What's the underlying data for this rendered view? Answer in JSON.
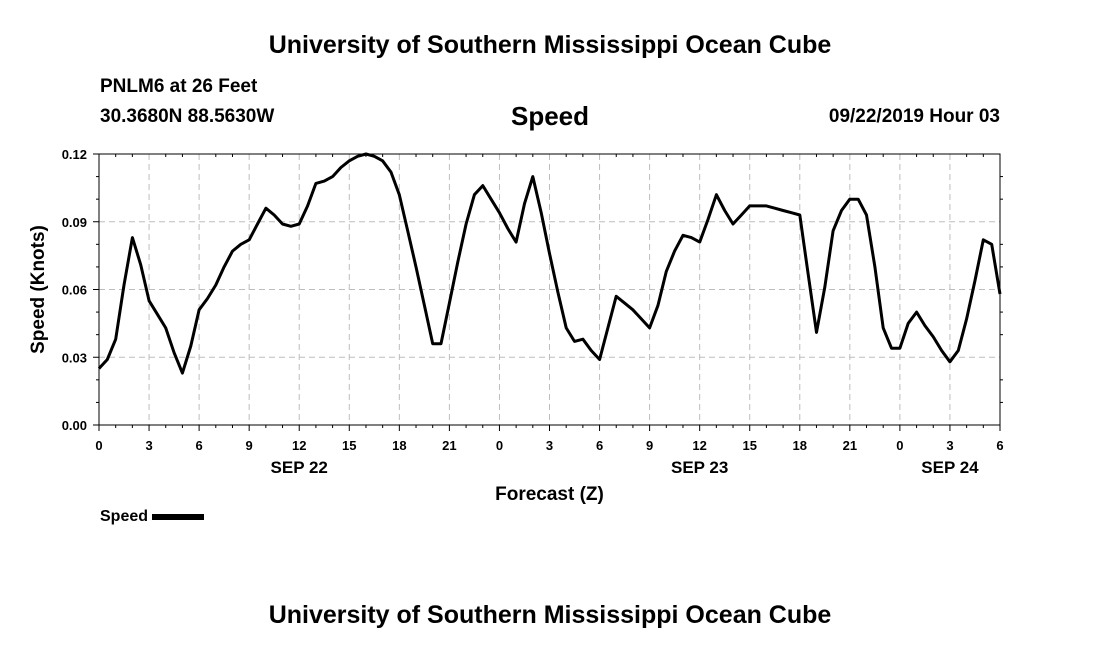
{
  "header": {
    "main_title": "University of Southern Mississippi Ocean Cube",
    "station": "PNLM6 at 26 Feet",
    "coords": "30.3680N 88.5630W",
    "chart_title": "Speed",
    "timestamp": "09/22/2019 Hour 03"
  },
  "footer": {
    "title": "University of Southern Mississippi Ocean Cube"
  },
  "legend": {
    "label": "Speed",
    "color": "#000000"
  },
  "chart_data": {
    "type": "line",
    "title": "Speed",
    "xlabel": "Forecast (Z)",
    "ylabel": "Speed (Knots)",
    "ylim": [
      0,
      0.12
    ],
    "xlim": [
      0,
      54
    ],
    "grid": true,
    "y_ticks": [
      "0.00",
      "0.03",
      "0.06",
      "0.09",
      "0.12"
    ],
    "x_ticks": [
      {
        "hour": 0,
        "label": "0"
      },
      {
        "hour": 3,
        "label": "3"
      },
      {
        "hour": 6,
        "label": "6"
      },
      {
        "hour": 9,
        "label": "9"
      },
      {
        "hour": 12,
        "label": "12"
      },
      {
        "hour": 15,
        "label": "15"
      },
      {
        "hour": 18,
        "label": "18"
      },
      {
        "hour": 21,
        "label": "21"
      },
      {
        "hour": 24,
        "label": "0"
      },
      {
        "hour": 27,
        "label": "3"
      },
      {
        "hour": 30,
        "label": "6"
      },
      {
        "hour": 33,
        "label": "9"
      },
      {
        "hour": 36,
        "label": "12"
      },
      {
        "hour": 39,
        "label": "15"
      },
      {
        "hour": 42,
        "label": "18"
      },
      {
        "hour": 45,
        "label": "21"
      },
      {
        "hour": 48,
        "label": "0"
      },
      {
        "hour": 51,
        "label": "3"
      },
      {
        "hour": 54,
        "label": "6"
      }
    ],
    "date_labels": [
      {
        "hour": 12,
        "label": "SEP 22"
      },
      {
        "hour": 36,
        "label": "SEP 23"
      },
      {
        "hour": 51,
        "label": "SEP 24"
      }
    ],
    "series": [
      {
        "name": "Speed",
        "x": [
          0,
          0.5,
          1,
          1.5,
          2,
          2.5,
          3,
          3.5,
          4,
          4.5,
          5,
          5.5,
          6,
          6.5,
          7,
          7.5,
          8,
          8.5,
          9,
          9.5,
          10,
          10.5,
          11,
          11.5,
          12,
          12.5,
          13,
          13.5,
          14,
          14.5,
          15,
          15.5,
          16,
          16.5,
          17,
          17.5,
          18,
          18.5,
          19,
          19.5,
          20,
          20.5,
          21,
          21.5,
          22,
          22.5,
          23,
          23.5,
          24,
          24.5,
          25,
          25.5,
          26,
          26.5,
          27,
          27.5,
          28,
          28.5,
          29,
          29.5,
          30,
          30.5,
          31,
          31.5,
          32,
          32.5,
          33,
          33.5,
          34,
          34.5,
          35,
          35.5,
          36,
          36.5,
          37,
          37.5,
          38,
          38.5,
          39,
          39.5,
          40,
          40.5,
          41,
          41.5,
          42,
          42.5,
          43,
          43.5,
          44,
          44.5,
          45,
          45.5,
          46,
          46.5,
          47,
          47.5,
          48,
          48.5,
          49,
          49.5,
          50,
          50.5,
          51,
          51.5,
          52,
          52.5,
          53,
          53.5,
          54
        ],
        "values": [
          0.025,
          0.029,
          0.038,
          0.062,
          0.083,
          0.071,
          0.055,
          0.049,
          0.043,
          0.032,
          0.023,
          0.035,
          0.051,
          0.056,
          0.062,
          0.07,
          0.077,
          0.08,
          0.082,
          0.089,
          0.096,
          0.093,
          0.089,
          0.088,
          0.089,
          0.097,
          0.107,
          0.108,
          0.11,
          0.114,
          0.117,
          0.119,
          0.12,
          0.119,
          0.117,
          0.112,
          0.102,
          0.086,
          0.07,
          0.053,
          0.036,
          0.036,
          0.054,
          0.072,
          0.089,
          0.102,
          0.106,
          0.1,
          0.094,
          0.087,
          0.081,
          0.098,
          0.11,
          0.094,
          0.076,
          0.059,
          0.043,
          0.037,
          0.038,
          0.033,
          0.029,
          0.043,
          0.057,
          0.054,
          0.051,
          0.047,
          0.043,
          0.053,
          0.068,
          0.077,
          0.084,
          0.083,
          0.081,
          0.091,
          0.102,
          0.095,
          0.089,
          0.093,
          0.097,
          0.097,
          0.097,
          0.096,
          0.095,
          0.094,
          0.093,
          0.067,
          0.041,
          0.061,
          0.086,
          0.095,
          0.1,
          0.1,
          0.093,
          0.07,
          0.043,
          0.034,
          0.034,
          0.045,
          0.05,
          0.044,
          0.039,
          0.033,
          0.028,
          0.033,
          0.047,
          0.064,
          0.082,
          0.08,
          0.058
        ]
      }
    ]
  }
}
